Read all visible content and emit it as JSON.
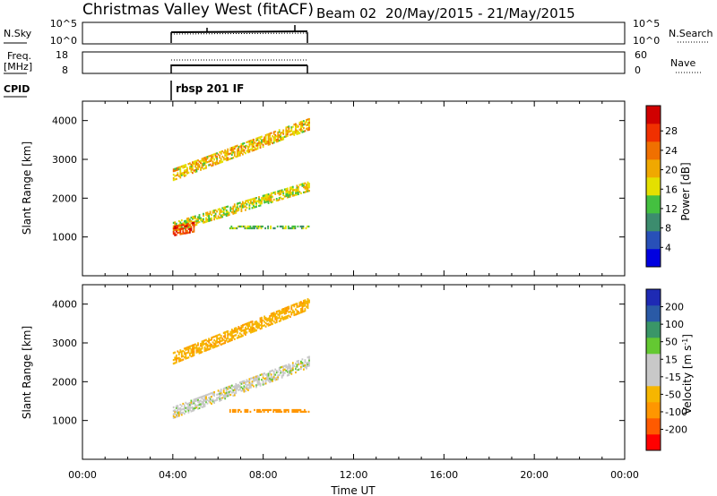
{
  "header": {
    "station": "Christmas Valley West (fitACF)",
    "beam": "Beam 02",
    "dates": "20/May/2015 - 21/May/2015"
  },
  "top_panels": {
    "nsky_label": "N.Sky",
    "nsky_ticks": [
      "10^5",
      "10^0"
    ],
    "nsearch_label": "N.Search",
    "nsearch_ticks": [
      "10^5",
      "10^0"
    ],
    "freq_label_1": "Freq.",
    "freq_label_2": "[MHz]",
    "freq_ticks": [
      "18",
      "8"
    ],
    "nave_label": "Nave",
    "nave_ticks": [
      "60",
      "0"
    ],
    "cpid_label": "CPID",
    "cpid_value": "rbsp 201 IF"
  },
  "panels": {
    "ylabel": "Slant Range [km]",
    "xlabel": "Time UT",
    "power_colorbar_label": "Power [dB]",
    "velocity_colorbar_label_main": "Velocity [m s",
    "velocity_colorbar_label_sup": "-1",
    "velocity_colorbar_label_end": "]"
  },
  "colors": {
    "power_scale": [
      "#0000e0",
      "#2850b8",
      "#3c8c6e",
      "#44c040",
      "#e4e000",
      "#f0a800",
      "#f07000",
      "#f03000",
      "#d00000"
    ],
    "velocity_scale": [
      "#ff0000",
      "#ff5a00",
      "#ff9600",
      "#f6b600",
      "#c8c8c8",
      "#c8c8c8",
      "#64c832",
      "#3a9668",
      "#2a5aa6",
      "#1e2ab4"
    ]
  },
  "chart_data": [
    {
      "type": "heatmap",
      "title": "Power",
      "x_ticks": [
        "00:00",
        "04:00",
        "08:00",
        "12:00",
        "16:00",
        "20:00",
        "00:00"
      ],
      "x_hours": [
        0,
        4,
        8,
        12,
        16,
        20,
        24
      ],
      "xlim": [
        0,
        24
      ],
      "ylim": [
        0,
        4500
      ],
      "y_ticks": [
        1000,
        2000,
        3000,
        4000
      ],
      "colorbar_ticks": [
        4,
        8,
        12,
        16,
        20,
        24,
        28
      ],
      "data_window": [
        4.0,
        10.0
      ],
      "bands": [
        {
          "t0": 4.0,
          "r0": 1250,
          "t1": 10.0,
          "r1": 2300,
          "width": 260,
          "value": 18
        },
        {
          "t0": 4.0,
          "r0": 2600,
          "t1": 10.0,
          "r1": 3900,
          "width": 300,
          "value": 20
        },
        {
          "t0": 6.5,
          "r0": 1250,
          "t1": 10.0,
          "r1": 1250,
          "width": 90,
          "value": 14
        },
        {
          "t0": 4.0,
          "r0": 1150,
          "t1": 4.9,
          "r1": 1250,
          "width": 260,
          "value": 28
        }
      ]
    },
    {
      "type": "heatmap",
      "title": "Velocity",
      "x_ticks": [
        "00:00",
        "04:00",
        "08:00",
        "12:00",
        "16:00",
        "20:00",
        "00:00"
      ],
      "x_hours": [
        0,
        4,
        8,
        12,
        16,
        20,
        24
      ],
      "xlim": [
        0,
        24
      ],
      "ylim": [
        0,
        4500
      ],
      "y_ticks": [
        1000,
        2000,
        3000,
        4000
      ],
      "colorbar_ticks": [
        "200",
        "100",
        "50",
        "15",
        "-15",
        "-50",
        "-100",
        "-200"
      ],
      "data_window": [
        4.0,
        10.0
      ],
      "bands": [
        {
          "t0": 4.0,
          "r0": 1200,
          "t1": 10.0,
          "r1": 2500,
          "width": 300,
          "value": 0
        },
        {
          "t0": 4.0,
          "r0": 2600,
          "t1": 10.0,
          "r1": 4000,
          "width": 300,
          "value": -40
        },
        {
          "t0": 6.5,
          "r0": 1250,
          "t1": 10.0,
          "r1": 1250,
          "width": 90,
          "value": -70
        }
      ]
    }
  ]
}
